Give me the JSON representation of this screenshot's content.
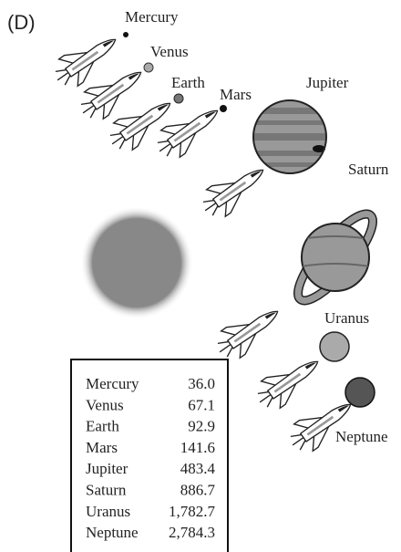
{
  "label": "(D)",
  "planets": [
    {
      "name": "Mercury"
    },
    {
      "name": "Venus"
    },
    {
      "name": "Earth"
    },
    {
      "name": "Mars"
    },
    {
      "name": "Jupiter"
    },
    {
      "name": "Saturn"
    },
    {
      "name": "Uranus"
    },
    {
      "name": "Neptune"
    }
  ],
  "table": {
    "rows": [
      [
        "Mercury",
        "36.0"
      ],
      [
        "Venus",
        "67.1"
      ],
      [
        "Earth",
        "92.9"
      ],
      [
        "Mars",
        "141.6"
      ],
      [
        "Jupiter",
        "483.4"
      ],
      [
        "Saturn",
        "886.7"
      ],
      [
        "Uranus",
        "1,782.7"
      ],
      [
        "Neptune",
        "2,784.3"
      ]
    ]
  }
}
